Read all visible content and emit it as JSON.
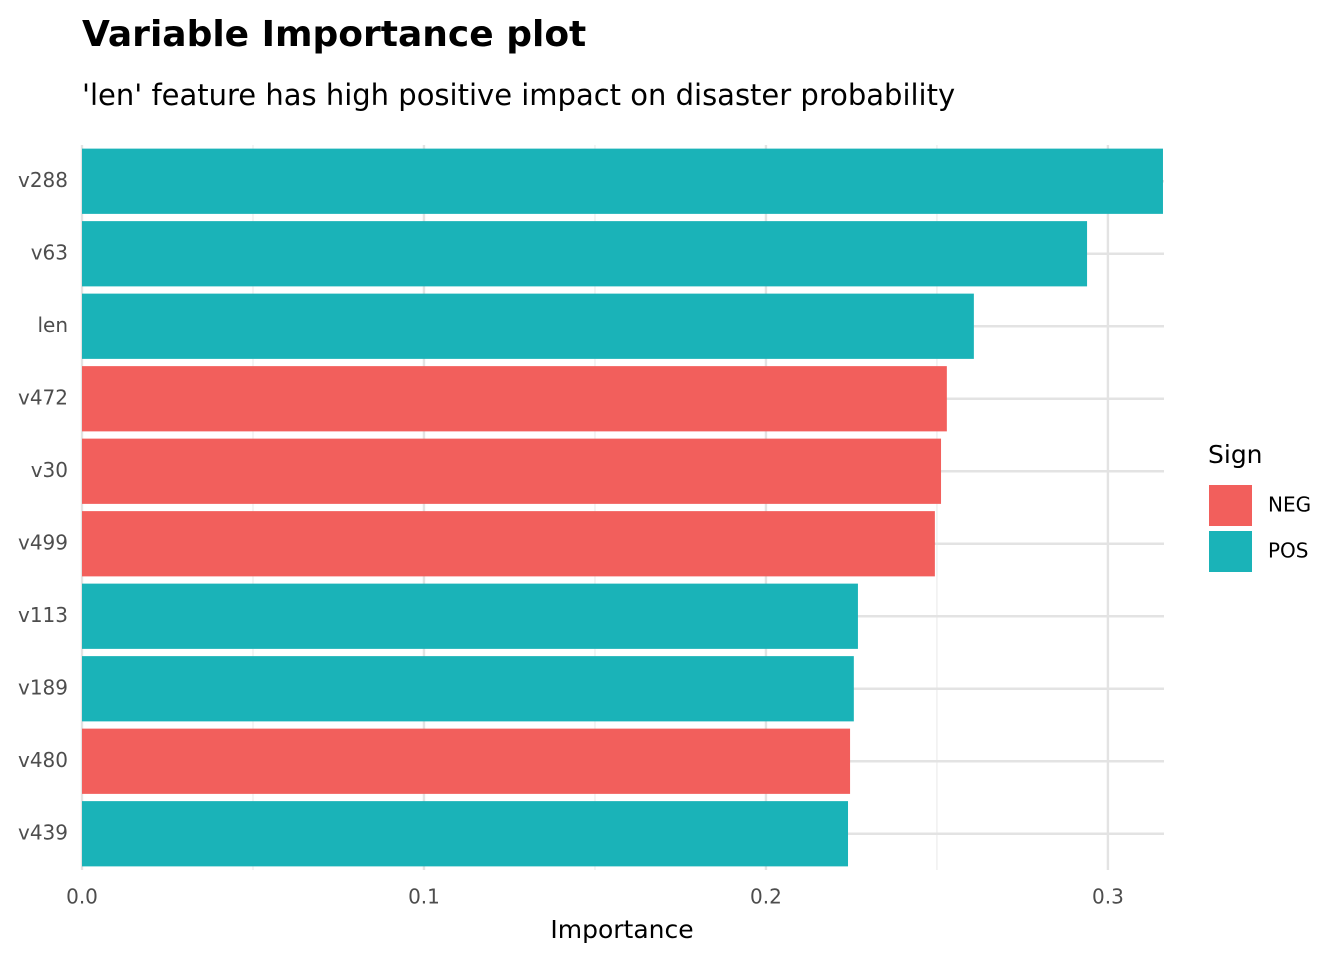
{
  "chart_data": {
    "type": "bar",
    "orientation": "horizontal",
    "title": "Variable Importance plot",
    "subtitle": "'len' feature has high positive impact on disaster probability",
    "x_label": "Importance",
    "categories": [
      "v288",
      "v63",
      "len",
      "v472",
      "v30",
      "v499",
      "v113",
      "v189",
      "v480",
      "v439"
    ],
    "values": [
      0.3161,
      0.2939,
      0.2608,
      0.2529,
      0.2512,
      0.2494,
      0.2269,
      0.2257,
      0.2246,
      0.224
    ],
    "signs": [
      "POS",
      "POS",
      "POS",
      "NEG",
      "NEG",
      "NEG",
      "POS",
      "POS",
      "NEG",
      "POS"
    ],
    "legend": {
      "title": "Sign",
      "position": "right",
      "entries": [
        {
          "name": "NEG",
          "color": "#f25f5c"
        },
        {
          "name": "POS",
          "color": "#1ab3b8"
        }
      ]
    },
    "xlim": [
      0,
      0.3164
    ],
    "xticks": [
      {
        "value": 0,
        "label": "0.0"
      },
      0.1,
      0.2,
      0.3
    ],
    "minor_xticks": [
      0.05,
      0.15,
      0.25
    ],
    "grid": true
  }
}
